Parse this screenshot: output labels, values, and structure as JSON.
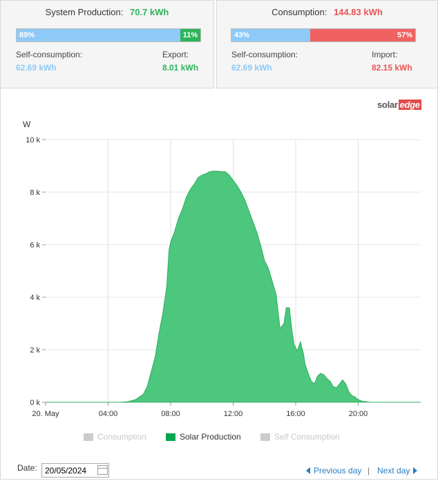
{
  "production": {
    "title": "System Production:",
    "value": "70.7 kWh",
    "bar_left_label": "89%",
    "bar_left_fraction": 0.89,
    "bar_right_label": "11%",
    "self_label": "Self-consumption:",
    "self_value": "62.69 kWh",
    "export_label": "Export:",
    "export_value": "8.01 kWh"
  },
  "consumption": {
    "title": "Consumption:",
    "value": "144.83 kWh",
    "bar_left_label": "43%",
    "bar_left_fraction": 0.43,
    "bar_right_label": "57%",
    "self_label": "Self-consumption:",
    "self_value": "62.69 kWh",
    "import_label": "Import:",
    "import_value": "82.15 kWh"
  },
  "colors": {
    "blue": "#8ecaf8",
    "green": "#2eb35a",
    "red": "#f06262",
    "solar_fill": "#4cc77d",
    "grey_legend": "#cccccc",
    "legend_green": "#00a651"
  },
  "logo": {
    "part1": "solar",
    "part2": "edge"
  },
  "chart_data": {
    "type": "area",
    "ylabel": "W",
    "x_ticks": [
      "20. May",
      "04:00",
      "08:00",
      "12:00",
      "16:00",
      "20:00"
    ],
    "y_ticks": [
      "0 k",
      "2 k",
      "4 k",
      "6 k",
      "8 k",
      "10 k"
    ],
    "ylim": [
      0,
      10000
    ],
    "xlim": [
      0,
      24
    ],
    "grid": true,
    "legend_position": "bottom",
    "series": [
      {
        "name": "Solar Production",
        "x": [
          0,
          4.75,
          5.25,
          5.75,
          6.25,
          6.5,
          7.0,
          7.25,
          7.5,
          7.75,
          7.9,
          8.0,
          8.25,
          8.5,
          8.75,
          9.0,
          9.25,
          9.5,
          9.75,
          10.0,
          10.25,
          10.5,
          10.75,
          11.0,
          11.25,
          11.5,
          11.75,
          12.0,
          12.25,
          12.5,
          12.75,
          13.0,
          13.25,
          13.5,
          13.75,
          14.0,
          14.25,
          14.5,
          14.75,
          15.0,
          15.25,
          15.4,
          15.6,
          15.75,
          15.9,
          16.1,
          16.3,
          16.5,
          16.6,
          16.8,
          17.0,
          17.2,
          17.4,
          17.6,
          17.8,
          18.0,
          18.2,
          18.4,
          18.6,
          18.8,
          19.0,
          19.2,
          19.4,
          19.6,
          19.8,
          20.0,
          20.25,
          20.5,
          20.75,
          21.0,
          21.25,
          24
        ],
        "values": [
          0,
          0,
          20,
          100,
          300,
          600,
          1700,
          2600,
          3400,
          4400,
          5800,
          6100,
          6500,
          7000,
          7350,
          7800,
          8100,
          8300,
          8550,
          8650,
          8700,
          8780,
          8800,
          8800,
          8780,
          8780,
          8650,
          8450,
          8250,
          8000,
          7700,
          7300,
          6900,
          6500,
          6000,
          5400,
          5100,
          4600,
          4100,
          2800,
          3000,
          3600,
          3600,
          2800,
          2200,
          1950,
          2300,
          1850,
          1450,
          1100,
          800,
          700,
          1000,
          1100,
          1050,
          900,
          800,
          600,
          550,
          700,
          850,
          700,
          400,
          250,
          200,
          100,
          40,
          20,
          0,
          0,
          0,
          0
        ]
      }
    ]
  },
  "legend": [
    {
      "label": "Consumption",
      "color": "#cccccc",
      "active": false
    },
    {
      "label": "Solar Production",
      "color": "#00a651",
      "active": true
    },
    {
      "label": "Self Consumption",
      "color": "#cccccc",
      "active": false
    }
  ],
  "footer": {
    "date_label": "Date:",
    "date_value": "20/05/2024",
    "prev_label": "Previous day",
    "separator": "|",
    "next_label": "Next day"
  }
}
